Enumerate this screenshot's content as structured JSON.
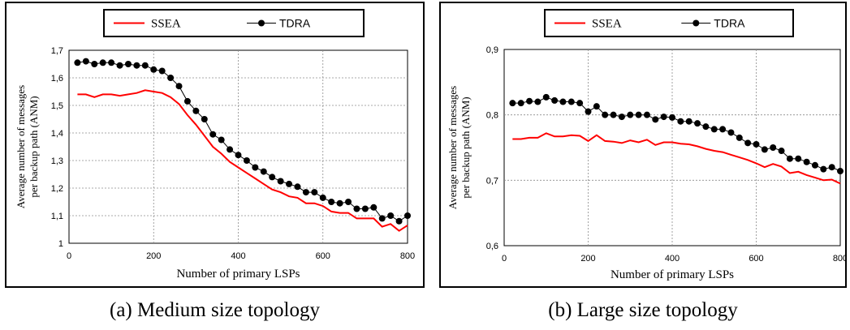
{
  "colors": {
    "ssea": "#ff0000",
    "tdra": "#000000",
    "grid": "#8c8c8c"
  },
  "captions": {
    "a": "(a) Medium size topology",
    "b": "(b) Large size topology"
  },
  "chart_data": [
    {
      "type": "line",
      "xlabel": "Number of primary LSPs",
      "ylabel_line1": "Average number of messages",
      "ylabel_line2": "per backup path (ANM)",
      "xlim": [
        0,
        800
      ],
      "ylim": [
        1,
        1.7
      ],
      "xticks": [
        0,
        200,
        400,
        600,
        800
      ],
      "yticks": [
        1,
        1.1,
        1.2,
        1.3,
        1.4,
        1.5,
        1.6,
        1.7
      ],
      "ytick_labels": [
        "1",
        "1,1",
        "1,2",
        "1,3",
        "1,4",
        "1,5",
        "1,6",
        "1,7"
      ],
      "legend_position": "top",
      "grid": true,
      "x": [
        20,
        40,
        60,
        80,
        100,
        120,
        140,
        160,
        180,
        200,
        220,
        240,
        260,
        280,
        300,
        320,
        340,
        360,
        380,
        400,
        420,
        440,
        460,
        480,
        500,
        520,
        540,
        560,
        580,
        600,
        620,
        640,
        660,
        680,
        700,
        720,
        740,
        760,
        780,
        800
      ],
      "series": [
        {
          "name": "SSEA",
          "marker": "none",
          "values": [
            1.54,
            1.54,
            1.53,
            1.54,
            1.54,
            1.535,
            1.54,
            1.545,
            1.555,
            1.55,
            1.545,
            1.53,
            1.505,
            1.465,
            1.43,
            1.39,
            1.35,
            1.325,
            1.295,
            1.275,
            1.255,
            1.235,
            1.215,
            1.195,
            1.185,
            1.17,
            1.165,
            1.145,
            1.145,
            1.135,
            1.115,
            1.11,
            1.11,
            1.09,
            1.09,
            1.09,
            1.06,
            1.07,
            1.045,
            1.065
          ]
        },
        {
          "name": "TDRA",
          "marker": "circle",
          "values": [
            1.655,
            1.66,
            1.65,
            1.655,
            1.655,
            1.645,
            1.65,
            1.645,
            1.645,
            1.63,
            1.625,
            1.6,
            1.57,
            1.515,
            1.48,
            1.45,
            1.395,
            1.375,
            1.34,
            1.32,
            1.3,
            1.275,
            1.26,
            1.24,
            1.225,
            1.215,
            1.205,
            1.185,
            1.185,
            1.165,
            1.15,
            1.145,
            1.15,
            1.125,
            1.125,
            1.13,
            1.09,
            1.1,
            1.08,
            1.1
          ]
        }
      ]
    },
    {
      "type": "line",
      "xlabel": "Number of primary LSPs",
      "ylabel_line1": "Average number of messages",
      "ylabel_line2": "per backup path (ANM)",
      "xlim": [
        0,
        800
      ],
      "ylim": [
        0.6,
        0.9
      ],
      "xticks": [
        0,
        200,
        400,
        600,
        800
      ],
      "yticks": [
        0.6,
        0.7,
        0.8,
        0.9
      ],
      "ytick_labels": [
        "0,6",
        "0,7",
        "0,8",
        "0,9"
      ],
      "legend_position": "top",
      "grid": true,
      "x": [
        20,
        40,
        60,
        80,
        100,
        120,
        140,
        160,
        180,
        200,
        220,
        240,
        260,
        280,
        300,
        320,
        340,
        360,
        380,
        400,
        420,
        440,
        460,
        480,
        500,
        520,
        540,
        560,
        580,
        600,
        620,
        640,
        660,
        680,
        700,
        720,
        740,
        760,
        780,
        800
      ],
      "series": [
        {
          "name": "SSEA",
          "marker": "none",
          "values": [
            0.763,
            0.763,
            0.765,
            0.765,
            0.772,
            0.767,
            0.767,
            0.769,
            0.768,
            0.76,
            0.769,
            0.76,
            0.759,
            0.757,
            0.761,
            0.758,
            0.762,
            0.754,
            0.758,
            0.758,
            0.756,
            0.755,
            0.752,
            0.748,
            0.745,
            0.743,
            0.739,
            0.735,
            0.731,
            0.726,
            0.72,
            0.725,
            0.721,
            0.711,
            0.713,
            0.708,
            0.704,
            0.7,
            0.701,
            0.695
          ]
        },
        {
          "name": "TDRA",
          "marker": "circle",
          "values": [
            0.818,
            0.818,
            0.821,
            0.82,
            0.827,
            0.822,
            0.82,
            0.82,
            0.818,
            0.805,
            0.813,
            0.8,
            0.8,
            0.797,
            0.8,
            0.8,
            0.8,
            0.793,
            0.797,
            0.796,
            0.79,
            0.79,
            0.787,
            0.782,
            0.778,
            0.778,
            0.773,
            0.765,
            0.757,
            0.755,
            0.747,
            0.75,
            0.745,
            0.733,
            0.733,
            0.728,
            0.723,
            0.717,
            0.72,
            0.714
          ]
        }
      ]
    }
  ]
}
